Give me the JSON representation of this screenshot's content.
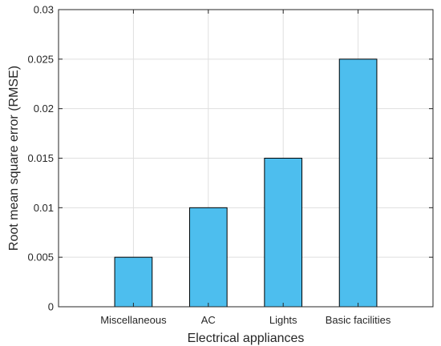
{
  "chart_data": {
    "type": "bar",
    "categories": [
      "Miscellaneous",
      "AC",
      "Lights",
      "Basic facilities"
    ],
    "values": [
      0.005,
      0.01,
      0.015,
      0.025
    ],
    "xlabel": "Electrical appliances",
    "ylabel": "Root mean square error (RMSE)",
    "ylim": [
      0,
      0.03
    ],
    "yticks": [
      0,
      0.005,
      0.01,
      0.015,
      0.02,
      0.025,
      0.03
    ],
    "ytick_labels": [
      "0",
      "0.005",
      "0.01",
      "0.015",
      "0.02",
      "0.025",
      "0.03"
    ],
    "grid": true,
    "bar_color": "#4dbeee",
    "edge_color": "#000000"
  }
}
